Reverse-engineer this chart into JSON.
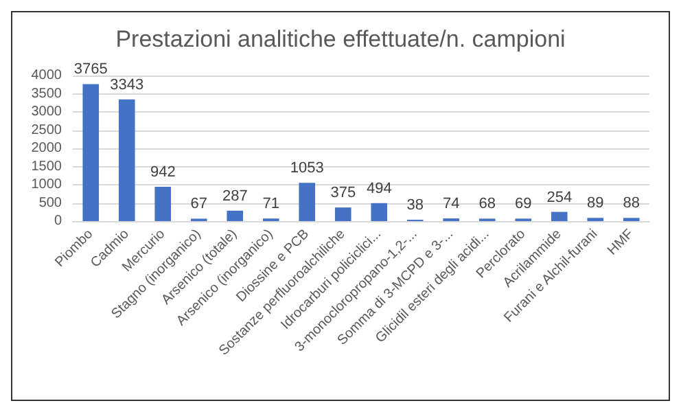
{
  "chart_data": {
    "type": "bar",
    "title": "Prestazioni analitiche effettuate/n. campioni",
    "categories": [
      "Piombo",
      "Cadmio",
      "Mercurio",
      "Stagno (inorganico)",
      "Arsenico (totale)",
      "Arsenico (inorganico)",
      "Diossine e PCB",
      "Sostanze perfluoroalchiliche",
      "Idrocarburi policiclici...",
      "3-monocloropropano-1,2-...",
      "Somma di 3-MCPD e 3-...",
      "Glicidil esteri degli acidi...",
      "Perclorato",
      "Acrilammide",
      "Furani e Alchil-furani",
      "HMF"
    ],
    "values": [
      3765,
      3343,
      942,
      67,
      287,
      71,
      1053,
      375,
      494,
      38,
      74,
      68,
      69,
      254,
      89,
      88
    ],
    "color": "#4472c4",
    "ylim": [
      0,
      4000
    ],
    "yticks": [
      0,
      500,
      1000,
      1500,
      2000,
      2500,
      3000,
      3500,
      4000
    ],
    "grid": "y",
    "data_labels": true
  }
}
